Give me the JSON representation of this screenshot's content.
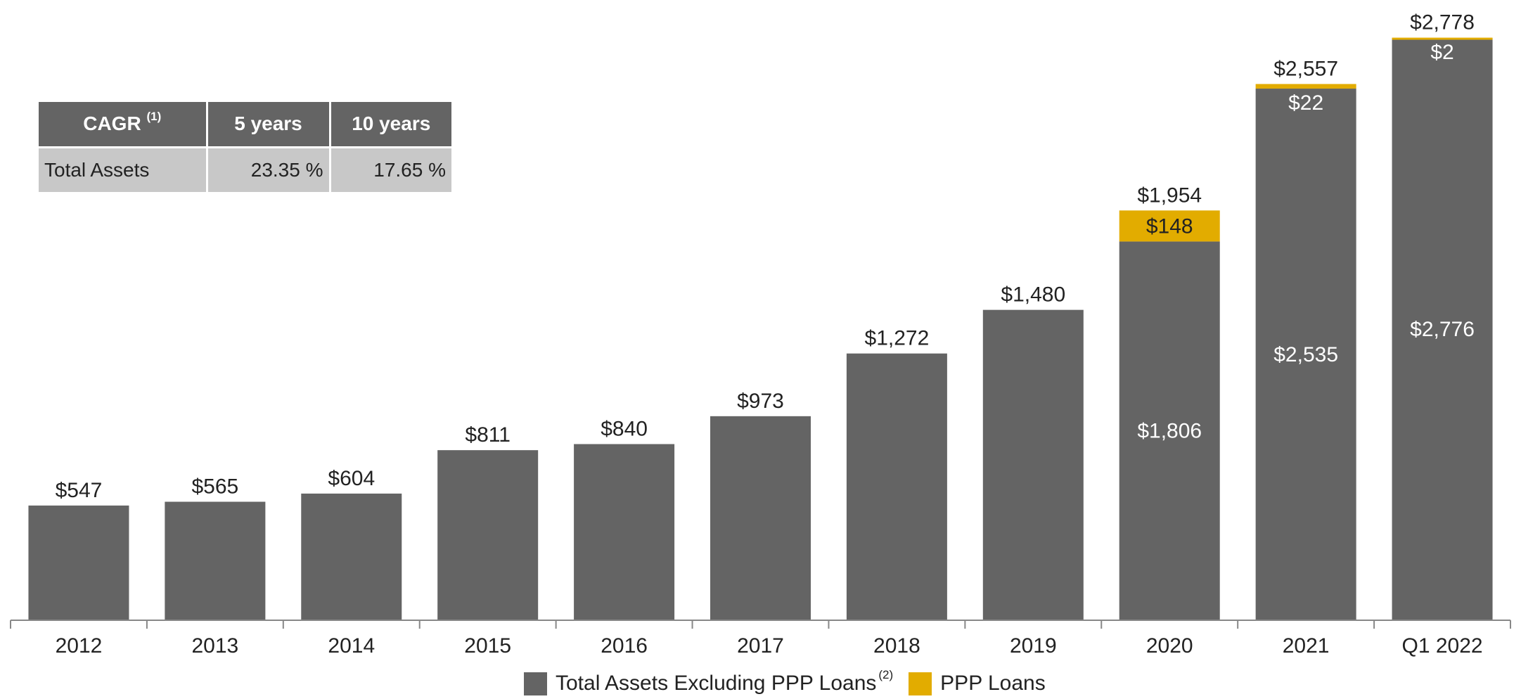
{
  "chart_data": {
    "type": "bar",
    "stacked": true,
    "categories": [
      "2012",
      "2013",
      "2014",
      "2015",
      "2016",
      "2017",
      "2018",
      "2019",
      "2020",
      "2021",
      "Q1 2022"
    ],
    "series": [
      {
        "name": "Total Assets Excluding PPP Loans",
        "values": [
          547,
          565,
          604,
          811,
          840,
          973,
          1272,
          1480,
          1806,
          2535,
          2776
        ],
        "color": "#646464"
      },
      {
        "name": "PPP Loans",
        "values": [
          0,
          0,
          0,
          0,
          0,
          0,
          0,
          0,
          148,
          22,
          2
        ],
        "color": "#e2ac00"
      }
    ],
    "totals": [
      547,
      565,
      604,
      811,
      840,
      973,
      1272,
      1480,
      1954,
      2557,
      2778
    ],
    "total_labels": [
      "$547",
      "$565",
      "$604",
      "$811",
      "$840",
      "$973",
      "$1,272",
      "$1,480",
      "$1,954",
      "$2,557",
      "$2,778"
    ],
    "segment_labels": [
      [
        "",
        ""
      ],
      [
        "",
        ""
      ],
      [
        "",
        ""
      ],
      [
        "",
        ""
      ],
      [
        "",
        ""
      ],
      [
        "",
        ""
      ],
      [
        "",
        ""
      ],
      [
        "",
        ""
      ],
      [
        "$1,806",
        "$148"
      ],
      [
        "$2,535",
        "$22"
      ],
      [
        "$2,776",
        "$2"
      ]
    ],
    "legend_superscript": "(2)",
    "legend_placement": "bottom",
    "ylim": [
      0,
      2800
    ],
    "grid": false,
    "xlabel": "",
    "ylabel": ""
  },
  "cagr_table": {
    "header": {
      "label": "CAGR",
      "superscript": "(1)",
      "col1": "5 years",
      "col2": "10 years"
    },
    "row": {
      "label": "Total Assets",
      "col1": "23.35 %",
      "col2": "17.65 %"
    }
  },
  "colors": {
    "bar": "#646464",
    "ppp": "#e2ac00",
    "axis": "#888888",
    "text": "#222222"
  }
}
